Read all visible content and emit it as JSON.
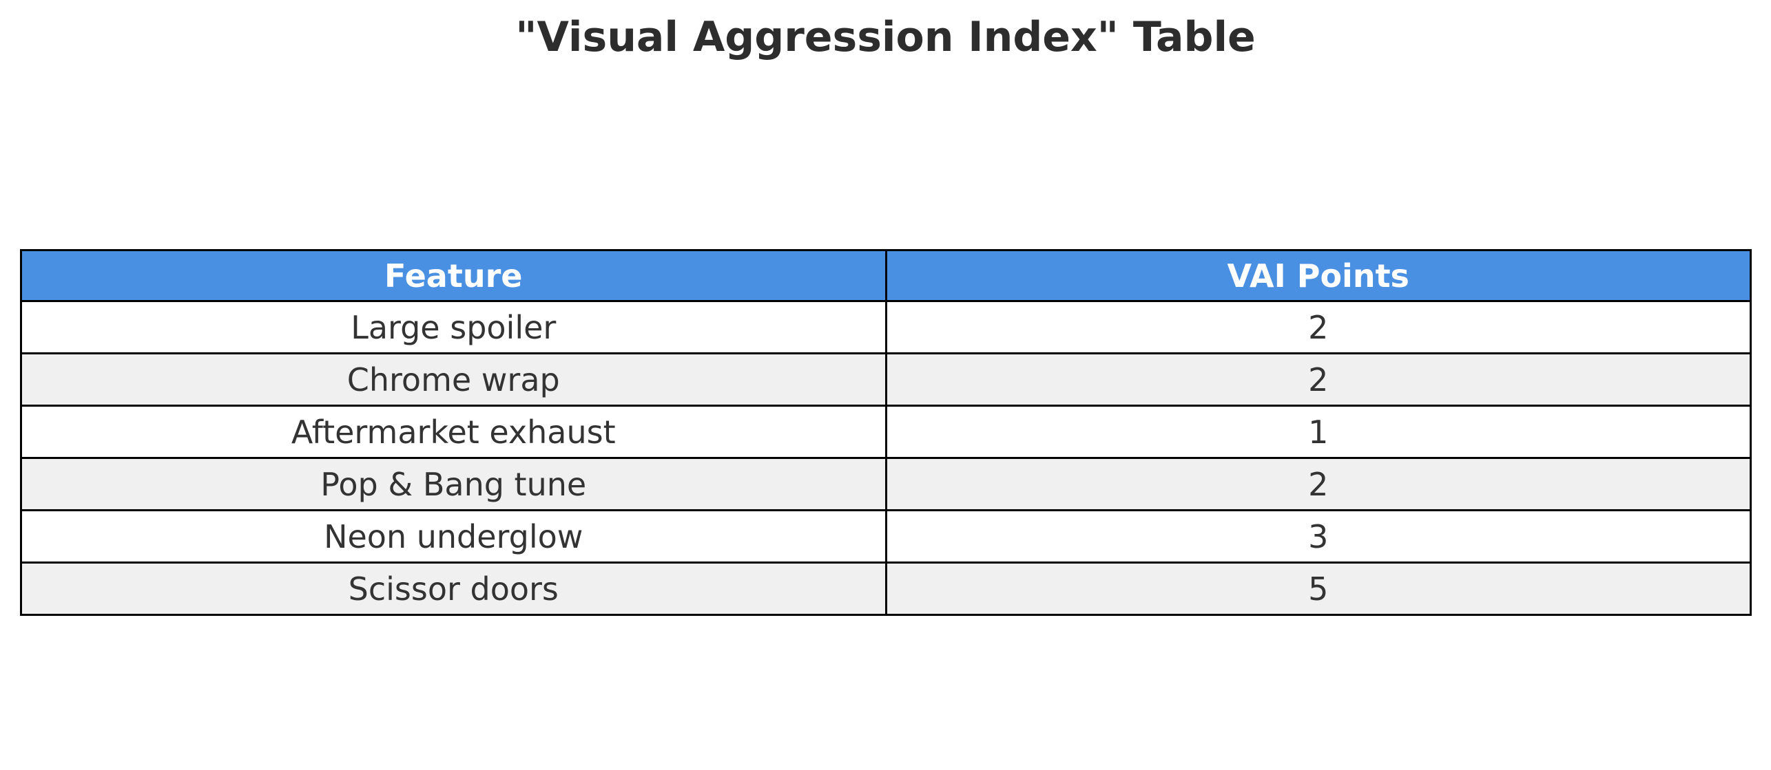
{
  "page": {
    "title": "\"Visual Aggression Index\" Table"
  },
  "table": {
    "columns": [
      "Feature",
      "VAI Points"
    ],
    "rows": [
      {
        "feature": "Large spoiler",
        "points": "2"
      },
      {
        "feature": "Chrome wrap",
        "points": "2"
      },
      {
        "feature": "Aftermarket exhaust",
        "points": "1"
      },
      {
        "feature": "Pop & Bang tune",
        "points": "2"
      },
      {
        "feature": "Neon underglow",
        "points": "3"
      },
      {
        "feature": "Scissor doors",
        "points": "5"
      }
    ],
    "colors": {
      "header_bg": "#4a90e2",
      "header_text": "#ffffff",
      "row_bg": "#ffffff",
      "row_alt_bg": "#f0f0f0",
      "border": "#000000",
      "text": "#333333",
      "title_text": "#2d2d2d"
    }
  },
  "chart_data": {
    "type": "table",
    "title": "\"Visual Aggression Index\" Table",
    "columns": [
      "Feature",
      "VAI Points"
    ],
    "rows": [
      [
        "Large spoiler",
        2
      ],
      [
        "Chrome wrap",
        2
      ],
      [
        "Aftermarket exhaust",
        1
      ],
      [
        "Pop & Bang tune",
        2
      ],
      [
        "Neon underglow",
        3
      ],
      [
        "Scissor doors",
        5
      ]
    ],
    "layout": {
      "header_bg": "#4a90e2",
      "alt_row_bg": "#f0f0f0",
      "grid": "on",
      "cell_text_align": "center"
    }
  }
}
